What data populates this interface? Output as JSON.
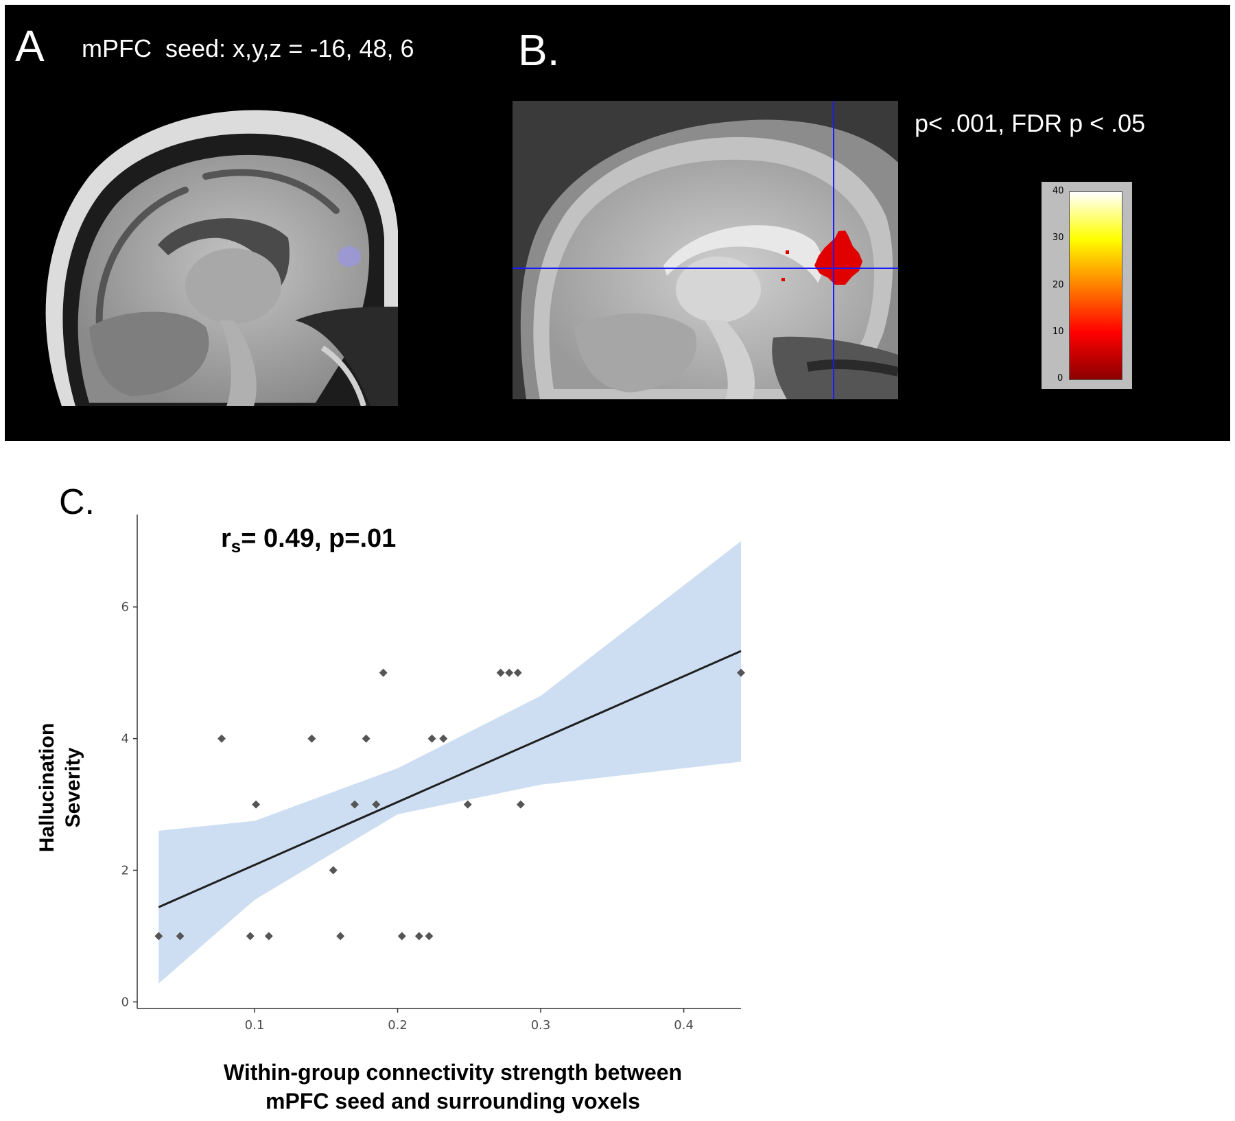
{
  "panel_a": {
    "letter": "A",
    "seed_label": "mPFC  seed: x,y,z = -16, 48, 6"
  },
  "panel_b": {
    "letter": "B.",
    "threshold_label": "p< .001, FDR p < .05",
    "colorbar": {
      "ticks": [
        "40",
        "30",
        "20",
        "10",
        "0"
      ],
      "colors": [
        "#ffffff",
        "#ffff00",
        "#ff8000",
        "#ff0000",
        "#8b0000"
      ]
    }
  },
  "panel_c": {
    "letter": "C.",
    "stat_r": "r",
    "stat_sub": "s",
    "stat_rest": "= 0.49, p=.01",
    "ylabel_line1": "Hallucination",
    "ylabel_line2": "Severity",
    "xlabel_line1": "Within-group connectivity strength between",
    "xlabel_line2": "mPFC seed and surrounding voxels"
  },
  "chart_data": {
    "type": "scatter",
    "xlabel": "Within-group connectivity strength between mPFC seed and surrounding voxels",
    "ylabel": "Hallucination Severity",
    "xlim": [
      0.018,
      0.44
    ],
    "ylim": [
      -0.1,
      7.3
    ],
    "x_ticks": [
      0.1,
      0.2,
      0.3,
      0.4
    ],
    "x_tick_labels": [
      "0.1",
      "0.2",
      "0.3",
      "0.4"
    ],
    "y_ticks": [
      0,
      2,
      4,
      6
    ],
    "y_tick_labels": [
      "0",
      "2",
      "4",
      "6"
    ],
    "grid": false,
    "points": [
      {
        "x": 0.033,
        "y": 1
      },
      {
        "x": 0.048,
        "y": 1
      },
      {
        "x": 0.077,
        "y": 4
      },
      {
        "x": 0.097,
        "y": 1
      },
      {
        "x": 0.101,
        "y": 3
      },
      {
        "x": 0.11,
        "y": 1
      },
      {
        "x": 0.14,
        "y": 4
      },
      {
        "x": 0.155,
        "y": 2
      },
      {
        "x": 0.16,
        "y": 1
      },
      {
        "x": 0.17,
        "y": 3
      },
      {
        "x": 0.178,
        "y": 4
      },
      {
        "x": 0.185,
        "y": 3
      },
      {
        "x": 0.19,
        "y": 5
      },
      {
        "x": 0.203,
        "y": 1
      },
      {
        "x": 0.215,
        "y": 1
      },
      {
        "x": 0.222,
        "y": 1
      },
      {
        "x": 0.224,
        "y": 4
      },
      {
        "x": 0.232,
        "y": 4
      },
      {
        "x": 0.249,
        "y": 3
      },
      {
        "x": 0.272,
        "y": 5
      },
      {
        "x": 0.278,
        "y": 5
      },
      {
        "x": 0.284,
        "y": 5
      },
      {
        "x": 0.286,
        "y": 3
      },
      {
        "x": 0.44,
        "y": 5
      }
    ],
    "fit_line": {
      "x": [
        0.033,
        0.44
      ],
      "y": [
        1.44,
        5.33
      ]
    },
    "confidence_band": {
      "x": [
        0.033,
        0.1,
        0.2,
        0.3,
        0.44
      ],
      "lower": [
        0.28,
        1.55,
        2.85,
        3.3,
        3.65
      ],
      "upper": [
        2.6,
        2.75,
        3.55,
        4.65,
        7.0
      ]
    },
    "colors": {
      "points": "#555555",
      "line": "#1f1f1f",
      "band": "#c6d8f0"
    }
  }
}
